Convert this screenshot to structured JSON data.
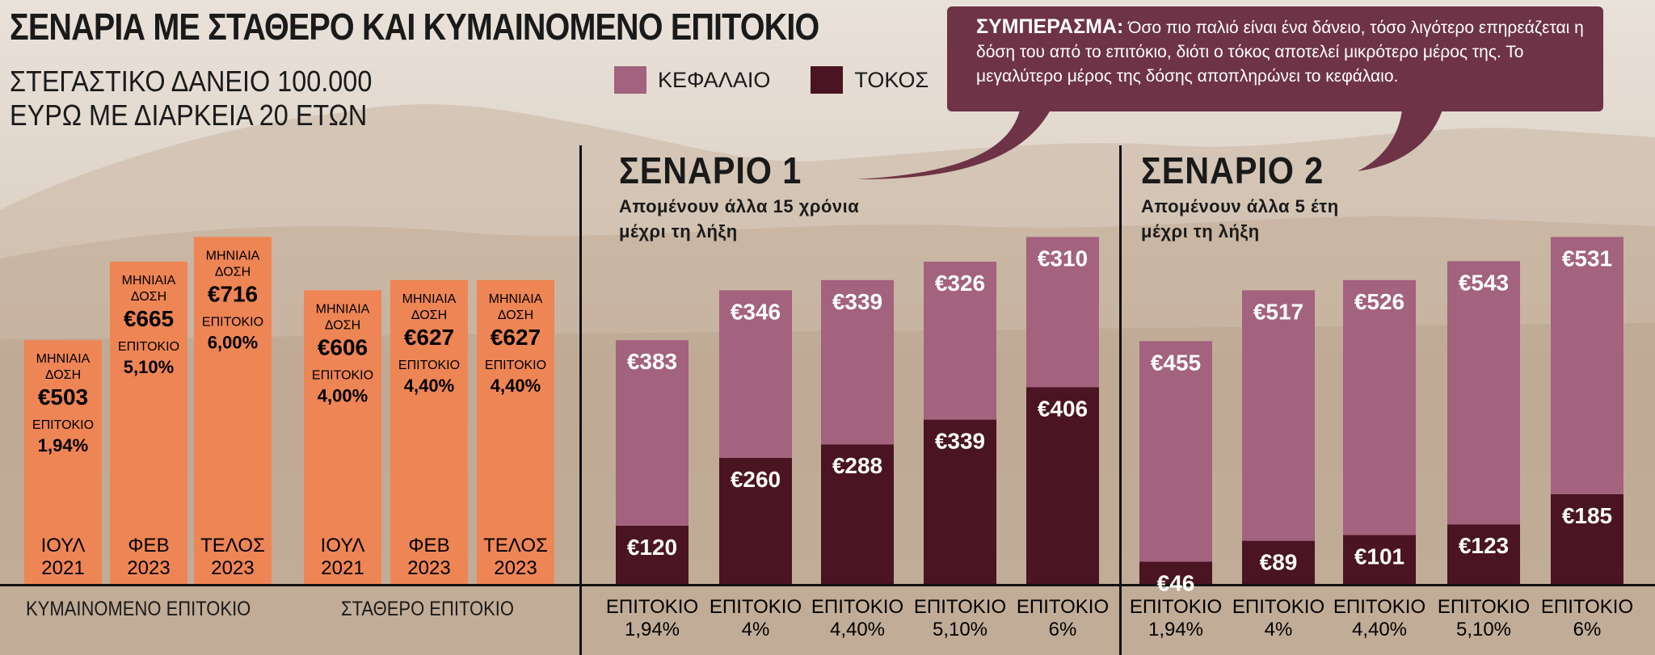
{
  "title": "ΣΕΝΑΡΙΑ ΜΕ ΣΤΑΘΕΡΟ ΚΑΙ ΚΥΜΑΙΝΟΜΕΝΟ ΕΠΙΤΟΚΙΟ",
  "subtitle_line1": "ΣΤΕΓΑΣΤΙΚΟ ΔΑΝΕΙΟ 100.000",
  "subtitle_line2": "ΕΥΡΩ ΜΕ ΔΙΑΡΚΕΙΑ 20 ΕΤΩΝ",
  "legend": {
    "principal_label": "ΚΕΦΑΛΑΙΟ",
    "interest_label": "ΤΟΚΟΣ"
  },
  "callout": {
    "label": "ΣΥΜΠΕΡΑΣΜΑ:",
    "text": "Όσο πιο παλιό είναι ένα δάνειο, τόσο λιγότερο επηρεάζεται η δόση του από το επιτόκιο, διότι ο τόκος αποτελεί μικρότερο μέρος της. Το μεγαλύτερο μέρος της δόσης αποπληρώνει το κεφάλαιο."
  },
  "colors": {
    "orange": "#ee8555",
    "principal": "#a3627d",
    "interest": "#4a1422",
    "callout": "#6e3346"
  },
  "chart_data": [
    {
      "type": "bar",
      "group_label": "ΚΥΜΑΙΝΟΜΕΝΟ ΕΠΙΤΟΚΙΟ",
      "payment_label": "ΜΗΝΙΑΙΑ ΔΟΣΗ",
      "rate_label": "ΕΠΙΤΟΚΙΟ",
      "categories": [
        [
          "ΙΟΥΛ",
          "2021"
        ],
        [
          "ΦΕΒ",
          "2023"
        ],
        [
          "ΤΕΛΟΣ",
          "2023"
        ]
      ],
      "values": [
        503,
        665,
        716
      ],
      "value_labels": [
        "€503",
        "€665",
        "€716"
      ],
      "rate_labels": [
        "1,94%",
        "5,10%",
        "6,00%"
      ],
      "ylim": [
        0,
        800
      ]
    },
    {
      "type": "bar",
      "group_label": "ΣΤΑΘΕΡΟ ΕΠΙΤΟΚΙΟ",
      "payment_label": "ΜΗΝΙΑΙΑ ΔΟΣΗ",
      "rate_label": "ΕΠΙΤΟΚΙΟ",
      "categories": [
        [
          "ΙΟΥΛ",
          "2021"
        ],
        [
          "ΦΕΒ",
          "2023"
        ],
        [
          "ΤΕΛΟΣ",
          "2023"
        ]
      ],
      "values": [
        606,
        627,
        627
      ],
      "value_labels": [
        "€606",
        "€627",
        "€627"
      ],
      "rate_labels": [
        "4,00%",
        "4,40%",
        "4,40%"
      ],
      "ylim": [
        0,
        800
      ]
    },
    {
      "type": "bar",
      "stacked": true,
      "title": "ΣΕΝΑΡΙΟ 1",
      "subtitle_line1": "Απομένουν άλλα 15 χρόνια",
      "subtitle_line2": "μέχρι τη λήξη",
      "categories": [
        [
          "ΕΠΙΤΟΚΙΟ",
          "1,94%"
        ],
        [
          "ΕΠΙΤΟΚΙΟ",
          "4%"
        ],
        [
          "ΕΠΙΤΟΚΙΟ",
          "4,40%"
        ],
        [
          "ΕΠΙΤΟΚΙΟ",
          "5,10%"
        ],
        [
          "ΕΠΙΤΟΚΙΟ",
          "6%"
        ]
      ],
      "series": [
        {
          "name": "ΚΕΦΑΛΑΙΟ",
          "values": [
            383,
            346,
            339,
            326,
            310
          ],
          "labels": [
            "€383",
            "€346",
            "€339",
            "€326",
            "€310"
          ]
        },
        {
          "name": "ΤΟΚΟΣ",
          "values": [
            120,
            260,
            288,
            339,
            406
          ],
          "labels": [
            "€120",
            "€260",
            "€288",
            "€339",
            "€406"
          ]
        }
      ],
      "ylim": [
        0,
        800
      ]
    },
    {
      "type": "bar",
      "stacked": true,
      "title": "ΣΕΝΑΡΙΟ 2",
      "subtitle_line1": "Απομένουν άλλα 5 έτη",
      "subtitle_line2": "μέχρι τη λήξη",
      "categories": [
        [
          "ΕΠΙΤΟΚΙΟ",
          "1,94%"
        ],
        [
          "ΕΠΙΤΟΚΙΟ",
          "4%"
        ],
        [
          "ΕΠΙΤΟΚΙΟ",
          "4,40%"
        ],
        [
          "ΕΠΙΤΟΚΙΟ",
          "5,10%"
        ],
        [
          "ΕΠΙΤΟΚΙΟ",
          "6%"
        ]
      ],
      "series": [
        {
          "name": "ΚΕΦΑΛΑΙΟ",
          "values": [
            455,
            517,
            526,
            543,
            531
          ],
          "labels": [
            "€455",
            "€517",
            "€526",
            "€543",
            "€531"
          ]
        },
        {
          "name": "ΤΟΚΟΣ",
          "values": [
            46,
            89,
            101,
            123,
            185
          ],
          "labels": [
            "€46",
            "€89",
            "€101",
            "€123",
            "€185"
          ]
        }
      ],
      "ylim": [
        0,
        800
      ]
    }
  ]
}
